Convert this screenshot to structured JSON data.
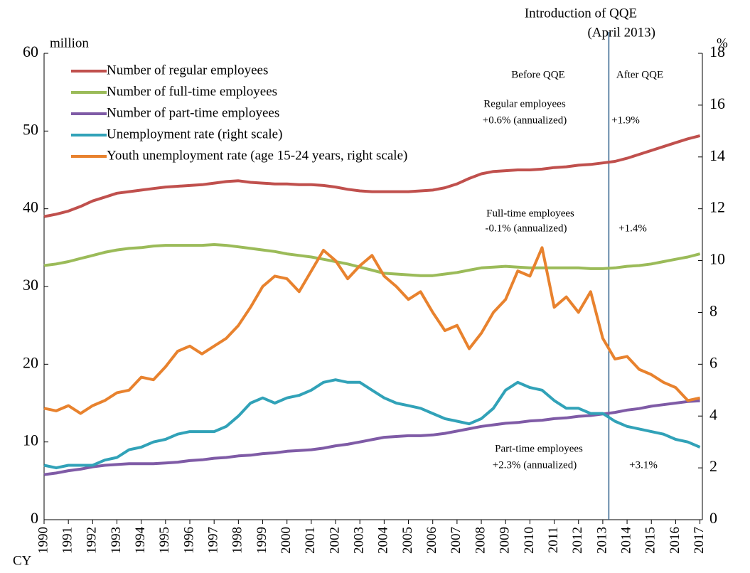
{
  "chart_data": {
    "type": "line",
    "x": [
      1990,
      1990.5,
      1991,
      1991.5,
      1992,
      1992.5,
      1993,
      1993.5,
      1994,
      1994.5,
      1995,
      1995.5,
      1996,
      1996.5,
      1997,
      1997.5,
      1998,
      1998.5,
      1999,
      1999.5,
      2000,
      2000.5,
      2001,
      2001.5,
      2002,
      2002.5,
      2003,
      2003.5,
      2004,
      2004.5,
      2005,
      2005.5,
      2006,
      2006.5,
      2007,
      2007.5,
      2008,
      2008.5,
      2009,
      2009.5,
      2010,
      2010.5,
      2011,
      2011.5,
      2012,
      2012.5,
      2013,
      2013.5,
      2014,
      2014.5,
      2015,
      2015.5,
      2016,
      2016.5,
      2017
    ],
    "series": [
      {
        "name": "Number of regular employees",
        "color": "#c0504d",
        "values": [
          39,
          39.3,
          39.7,
          40.3,
          41,
          41.5,
          42,
          42.2,
          42.4,
          42.6,
          42.8,
          42.9,
          43,
          43.1,
          43.3,
          43.5,
          43.6,
          43.4,
          43.3,
          43.2,
          43.2,
          43.1,
          43.1,
          43,
          42.8,
          42.5,
          42.3,
          42.2,
          42.2,
          42.2,
          42.2,
          42.3,
          42.4,
          42.7,
          43.2,
          43.9,
          44.5,
          44.8,
          44.9,
          45,
          45,
          45.1,
          45.3,
          45.4,
          45.6,
          45.7,
          45.9,
          46.1,
          46.5,
          47,
          47.5,
          48,
          48.5,
          49,
          49.4
        ]
      },
      {
        "name": "Number of full-time employees",
        "color": "#9bbb59",
        "values": [
          32.7,
          32.9,
          33.2,
          33.6,
          34,
          34.4,
          34.7,
          34.9,
          35,
          35.2,
          35.3,
          35.3,
          35.3,
          35.3,
          35.4,
          35.3,
          35.1,
          34.9,
          34.7,
          34.5,
          34.2,
          34,
          33.8,
          33.5,
          33.2,
          32.9,
          32.5,
          32.1,
          31.7,
          31.6,
          31.5,
          31.4,
          31.4,
          31.6,
          31.8,
          32.1,
          32.4,
          32.5,
          32.6,
          32.5,
          32.4,
          32.4,
          32.4,
          32.4,
          32.4,
          32.3,
          32.3,
          32.4,
          32.6,
          32.7,
          32.9,
          33.2,
          33.5,
          33.8,
          34.2
        ]
      },
      {
        "name": "Number of part-time employees",
        "color": "#7f5ba6",
        "values": [
          5.8,
          6.0,
          6.3,
          6.5,
          6.8,
          7.0,
          7.1,
          7.2,
          7.2,
          7.2,
          7.3,
          7.4,
          7.6,
          7.7,
          7.9,
          8.0,
          8.2,
          8.3,
          8.5,
          8.6,
          8.8,
          8.9,
          9.0,
          9.2,
          9.5,
          9.7,
          10.0,
          10.3,
          10.6,
          10.7,
          10.8,
          10.8,
          10.9,
          11.1,
          11.4,
          11.7,
          12.0,
          12.2,
          12.4,
          12.5,
          12.7,
          12.8,
          13.0,
          13.1,
          13.3,
          13.4,
          13.6,
          13.8,
          14.1,
          14.3,
          14.6,
          14.8,
          15.0,
          15.2,
          15.3
        ]
      },
      {
        "name": "Unemployment rate (right scale)",
        "color": "#31a2b8",
        "axis": "y2",
        "values": [
          2.1,
          2.0,
          2.1,
          2.1,
          2.1,
          2.3,
          2.4,
          2.7,
          2.8,
          3.0,
          3.1,
          3.3,
          3.4,
          3.4,
          3.4,
          3.6,
          4.0,
          4.5,
          4.7,
          4.5,
          4.7,
          4.8,
          5.0,
          5.3,
          5.4,
          5.3,
          5.3,
          5.0,
          4.7,
          4.5,
          4.4,
          4.3,
          4.1,
          3.9,
          3.8,
          3.7,
          3.9,
          4.3,
          5.0,
          5.3,
          5.1,
          5.0,
          4.6,
          4.3,
          4.3,
          4.1,
          4.1,
          3.8,
          3.6,
          3.5,
          3.4,
          3.3,
          3.1,
          3.0,
          2.8
        ]
      },
      {
        "name": "Youth unemployment rate (age 15-24 years, right scale)",
        "color": "#e8822e",
        "axis": "y2",
        "values": [
          4.3,
          4.2,
          4.4,
          4.1,
          4.4,
          4.6,
          4.9,
          5.0,
          5.5,
          5.4,
          5.9,
          6.5,
          6.7,
          6.4,
          6.7,
          7.0,
          7.5,
          8.2,
          9.0,
          9.4,
          9.3,
          8.8,
          9.6,
          10.4,
          10.0,
          9.3,
          9.8,
          10.2,
          9.4,
          9.0,
          8.5,
          8.8,
          8.0,
          7.3,
          7.5,
          6.6,
          7.2,
          8.0,
          8.5,
          9.6,
          9.4,
          10.5,
          8.2,
          8.6,
          8.0,
          8.8,
          7.0,
          6.2,
          6.3,
          5.8,
          5.6,
          5.3,
          5.1,
          4.6,
          4.7
        ]
      }
    ],
    "xlim": [
      1990,
      2017.1
    ],
    "xticks": [
      1990,
      1991,
      1992,
      1993,
      1994,
      1995,
      1996,
      1997,
      1998,
      1999,
      2000,
      2001,
      2002,
      2003,
      2004,
      2005,
      2006,
      2007,
      2008,
      2009,
      2010,
      2011,
      2012,
      2013,
      2014,
      2015,
      2016,
      2017
    ],
    "ylim": [
      0,
      60
    ],
    "yticks": [
      0,
      10,
      20,
      30,
      40,
      50,
      60
    ],
    "y2lim": [
      0,
      18
    ],
    "y2ticks": [
      0,
      2,
      4,
      6,
      8,
      10,
      12,
      14,
      16,
      18
    ],
    "y_unit": "million",
    "y2_unit": "%",
    "x_prefix": "CY",
    "qqe_x": 2013.25,
    "annotations": {
      "qqe_title": "Introduction of QQE",
      "qqe_date": "(April 2013)",
      "before": "Before QQE",
      "after": "After QQE",
      "regular": "Regular employees",
      "regular_before": "+0.6% (annualized)",
      "regular_after": "+1.9%",
      "fulltime": "Full-time employees",
      "fulltime_before": "-0.1% (annualized)",
      "fulltime_after": "+1.4%",
      "parttime": "Part-time employees",
      "parttime_before": "+2.3% (annualized)",
      "parttime_after": "+3.1%"
    }
  }
}
